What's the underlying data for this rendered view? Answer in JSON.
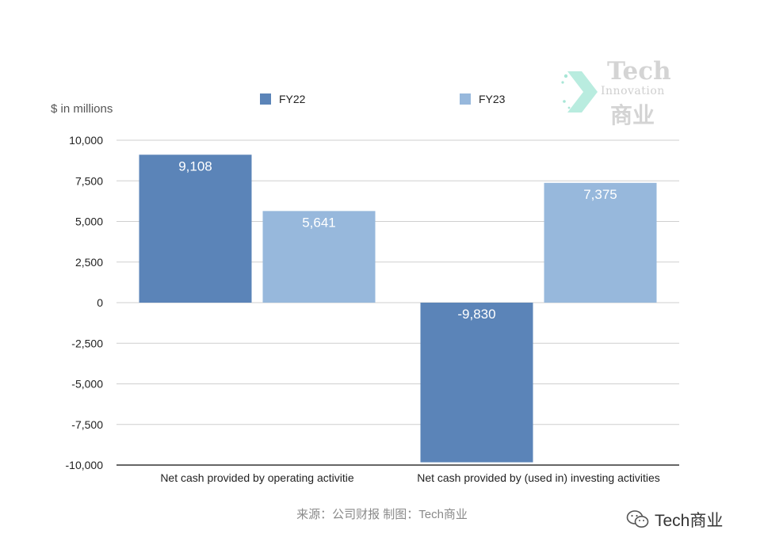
{
  "chart_data": {
    "type": "bar",
    "ylabel": "$ in millions",
    "ylim": [
      -10000,
      10000
    ],
    "yticks": [
      10000,
      7500,
      5000,
      2500,
      0,
      -2500,
      -5000,
      -7500,
      -10000
    ],
    "ytick_labels": [
      "10,000",
      "7,500",
      "5,000",
      "2,500",
      "0",
      "-2,500",
      "-5,000",
      "-7,500",
      "-10,000"
    ],
    "categories": [
      "Net cash provided by operating activitie",
      "Net cash provided by (used in) investing activities"
    ],
    "series": [
      {
        "name": "FY22",
        "color": "#5b84b8",
        "values": [
          9108,
          -9830
        ],
        "labels": [
          "9,108",
          "-9,830"
        ]
      },
      {
        "name": "FY23",
        "color": "#97b8dc",
        "values": [
          5641,
          7375
        ],
        "labels": [
          "5,641",
          "7,375"
        ]
      }
    ],
    "grid": true,
    "legend": "top"
  },
  "source": "来源：公司财报 制图：Tech商业",
  "watermark": {
    "line1": "Tech",
    "line2": "Innovation",
    "line3": "商业"
  },
  "wechat": {
    "label": "Tech商业",
    "icon": "wechat-icon"
  }
}
